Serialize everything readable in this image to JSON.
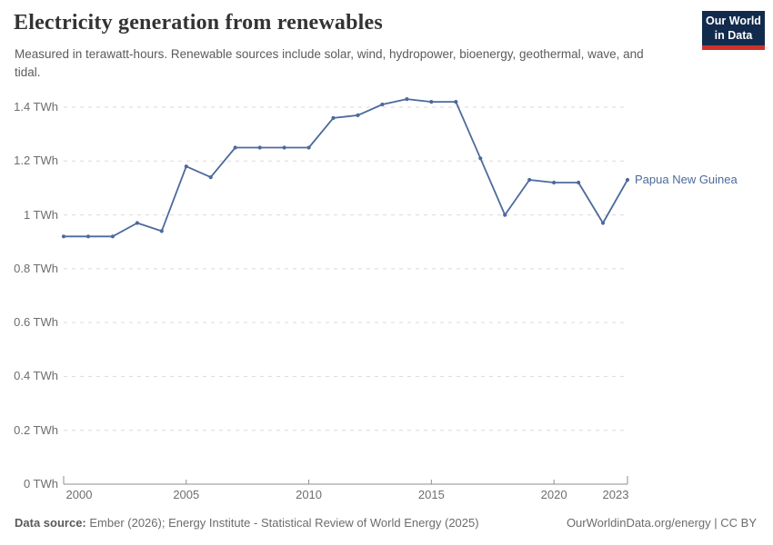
{
  "header": {
    "title": "Electricity generation from renewables",
    "subtitle": "Measured in terawatt-hours. Renewable sources include solar, wind, hydropower, bioenergy, geothermal, wave, and tidal.",
    "logo": {
      "line1": "Our World",
      "line2": "in Data"
    }
  },
  "chart_data": {
    "type": "line",
    "title": "Electricity generation from renewables",
    "unit": "TWh",
    "x": [
      2000,
      2001,
      2002,
      2003,
      2004,
      2005,
      2006,
      2007,
      2008,
      2009,
      2010,
      2011,
      2012,
      2013,
      2014,
      2015,
      2016,
      2017,
      2018,
      2019,
      2020,
      2021,
      2022,
      2023
    ],
    "series": [
      {
        "name": "Papua New Guinea",
        "color": "#4C6A9C",
        "values": [
          0.92,
          0.92,
          0.92,
          0.97,
          0.94,
          1.18,
          1.14,
          1.25,
          1.25,
          1.25,
          1.25,
          1.36,
          1.37,
          1.41,
          1.43,
          1.42,
          1.42,
          1.21,
          1.0,
          1.13,
          1.12,
          1.12,
          0.97,
          1.13
        ]
      }
    ],
    "ylim": [
      0,
      1.4
    ],
    "yticks": [
      {
        "value": 0,
        "label": "0 TWh"
      },
      {
        "value": 0.2,
        "label": "0.2 TWh"
      },
      {
        "value": 0.4,
        "label": "0.4 TWh"
      },
      {
        "value": 0.6,
        "label": "0.6 TWh"
      },
      {
        "value": 0.8,
        "label": "0.8 TWh"
      },
      {
        "value": 1,
        "label": "1 TWh"
      },
      {
        "value": 1.2,
        "label": "1.2 TWh"
      },
      {
        "value": 1.4,
        "label": "1.4 TWh"
      }
    ],
    "xticks": [
      {
        "year": 2000,
        "label": "2000"
      },
      {
        "year": 2005,
        "label": "2005"
      },
      {
        "year": 2010,
        "label": "2010"
      },
      {
        "year": 2015,
        "label": "2015"
      },
      {
        "year": 2020,
        "label": "2020"
      },
      {
        "year": 2023,
        "label": "2023"
      }
    ],
    "grid": "horizontal-dashed",
    "legend_position": "end-of-line-label"
  },
  "footer": {
    "datasource_label": "Data source:",
    "datasource_text": " Ember (2026); Energy Institute - Statistical Review of World Energy (2025)",
    "right_text": "OurWorldinData.org/energy | CC BY"
  },
  "colors": {
    "line": "#4C6A9C",
    "grid": "#d9d9d9",
    "axis": "#8f8f8f",
    "tick_text": "#6e6e6e",
    "logo_bg": "#122B4D",
    "logo_red": "#D0312D"
  }
}
